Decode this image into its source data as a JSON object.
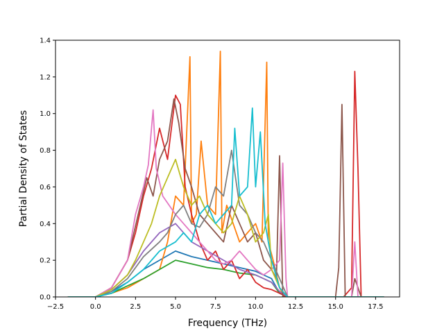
{
  "chart_data": {
    "type": "line",
    "title": "",
    "xlabel": "Frequency (THz)",
    "ylabel": "Partial Density of States",
    "xlim": [
      -2.5,
      19.0
    ],
    "ylim": [
      0.0,
      1.4
    ],
    "xticks": [
      -2.5,
      0.0,
      2.5,
      5.0,
      7.5,
      10.0,
      12.5,
      15.0,
      17.5
    ],
    "xtick_labels": [
      "−2.5",
      "0.0",
      "2.5",
      "5.0",
      "7.5",
      "10.0",
      "12.5",
      "15.0",
      "17.5"
    ],
    "yticks": [
      0.0,
      0.2,
      0.4,
      0.6,
      0.8,
      1.0,
      1.2,
      1.4
    ],
    "ytick_labels": [
      "0.0",
      "0.2",
      "0.4",
      "0.6",
      "0.8",
      "1.0",
      "1.2",
      "1.4"
    ],
    "grid": false,
    "legend": "none",
    "series": [
      {
        "color": "#1f77b4",
        "x": [
          -1.7,
          0,
          1,
          2,
          3,
          4,
          5,
          6,
          7,
          8,
          9,
          10,
          11,
          11.5,
          12,
          15,
          16,
          17,
          18
        ],
        "y": [
          0,
          0,
          0.03,
          0.08,
          0.15,
          0.2,
          0.25,
          0.22,
          0.2,
          0.18,
          0.16,
          0.14,
          0.1,
          0.02,
          0,
          0,
          0,
          0,
          0
        ]
      },
      {
        "color": "#ff7f0e",
        "x": [
          -1.7,
          0,
          1,
          2,
          3,
          4,
          4.5,
          5,
          5.5,
          5.9,
          6,
          6.3,
          6.6,
          7,
          7.5,
          7.8,
          7.9,
          8.2,
          8.6,
          9,
          9.5,
          10,
          10.4,
          10.7,
          10.8,
          11.1,
          11.5,
          11.8,
          12,
          15,
          16,
          17,
          18
        ],
        "y": [
          0,
          0,
          0.02,
          0.05,
          0.1,
          0.15,
          0.3,
          0.55,
          0.5,
          1.31,
          0.4,
          0.45,
          0.85,
          0.5,
          0.45,
          1.34,
          0.35,
          0.5,
          0.4,
          0.3,
          0.35,
          0.4,
          0.3,
          1.28,
          0.3,
          0.2,
          0.05,
          0,
          0,
          0,
          0,
          0,
          0
        ]
      },
      {
        "color": "#2ca02c",
        "x": [
          -1.7,
          0,
          1,
          2,
          3,
          4,
          5,
          6,
          7,
          8,
          9,
          10,
          11,
          11.5,
          12,
          15,
          16,
          17,
          18
        ],
        "y": [
          0,
          0,
          0.02,
          0.06,
          0.1,
          0.15,
          0.2,
          0.18,
          0.16,
          0.15,
          0.13,
          0.12,
          0.08,
          0.02,
          0,
          0,
          0,
          0,
          0
        ]
      },
      {
        "color": "#d62728",
        "x": [
          -1.7,
          0,
          1,
          2,
          2.5,
          3,
          3.5,
          4,
          4.5,
          5,
          5.3,
          5.6,
          6,
          6.5,
          7,
          7.5,
          8,
          8.5,
          9,
          9.5,
          10,
          10.5,
          11,
          11.5,
          12,
          15,
          15.5,
          16,
          16.2,
          16.4,
          16.6,
          17,
          18
        ],
        "y": [
          0,
          0,
          0.05,
          0.2,
          0.35,
          0.55,
          0.7,
          0.92,
          0.75,
          1.1,
          1.05,
          0.6,
          0.45,
          0.3,
          0.2,
          0.25,
          0.15,
          0.2,
          0.1,
          0.15,
          0.08,
          0.05,
          0.04,
          0.02,
          0,
          0,
          0,
          0.05,
          1.23,
          0.7,
          0,
          0,
          0
        ]
      },
      {
        "color": "#9467bd",
        "x": [
          -1.7,
          0,
          1,
          2,
          3,
          4,
          5,
          6,
          7,
          8,
          9,
          10,
          11,
          11.5,
          12,
          15,
          16,
          17,
          18
        ],
        "y": [
          0,
          0,
          0.04,
          0.12,
          0.25,
          0.35,
          0.4,
          0.3,
          0.25,
          0.2,
          0.15,
          0.12,
          0.08,
          0.03,
          0,
          0,
          0,
          0,
          0
        ]
      },
      {
        "color": "#8c564b",
        "x": [
          -1.7,
          0,
          1,
          2,
          2.8,
          3.2,
          3.6,
          4,
          4.5,
          4.9,
          5.2,
          5.6,
          6,
          6.5,
          7,
          7.5,
          8,
          8.5,
          9,
          9.5,
          10,
          10.5,
          11,
          11.3,
          11.5,
          11.7,
          12,
          15,
          15.2,
          15.4,
          15.6,
          16,
          16.2,
          16.6,
          17,
          18
        ],
        "y": [
          0,
          0,
          0.05,
          0.2,
          0.5,
          0.65,
          0.55,
          0.75,
          0.85,
          1.08,
          0.95,
          0.7,
          0.6,
          0.45,
          0.4,
          0.35,
          0.3,
          0.5,
          0.4,
          0.3,
          0.35,
          0.2,
          0.15,
          0.1,
          0.77,
          0,
          0,
          0,
          0.16,
          1.05,
          0,
          0,
          0.1,
          0,
          0,
          0
        ]
      },
      {
        "color": "#e377c2",
        "x": [
          -1.7,
          0,
          1,
          2,
          2.5,
          3,
          3.3,
          3.6,
          3.8,
          4.2,
          4.6,
          5,
          5.5,
          6,
          6.5,
          7,
          7.5,
          8,
          8.5,
          9,
          9.5,
          10,
          10.5,
          11,
          11.5,
          11.7,
          11.9,
          12,
          15,
          16,
          16.2,
          16.4,
          16.6,
          17,
          18
        ],
        "y": [
          0,
          0,
          0.05,
          0.2,
          0.45,
          0.6,
          0.72,
          1.02,
          0.7,
          0.55,
          0.5,
          0.45,
          0.4,
          0.35,
          0.3,
          0.25,
          0.2,
          0.18,
          0.2,
          0.25,
          0.2,
          0.15,
          0.12,
          0.15,
          0.2,
          0.73,
          0.1,
          0,
          0,
          0,
          0.3,
          0,
          0,
          0,
          0
        ]
      },
      {
        "color": "#7f7f7f",
        "x": [
          -1.7,
          0,
          1,
          2,
          3,
          4,
          4.5,
          5,
          5.5,
          6,
          6.5,
          7,
          7.5,
          8,
          8.5,
          9,
          9.5,
          10,
          10.5,
          11,
          11.5,
          12,
          15,
          16,
          17,
          18
        ],
        "y": [
          0,
          0,
          0.03,
          0.1,
          0.22,
          0.3,
          0.35,
          0.45,
          0.5,
          0.4,
          0.38,
          0.45,
          0.6,
          0.55,
          0.8,
          0.5,
          0.45,
          0.35,
          0.3,
          0.2,
          0.1,
          0,
          0,
          0,
          0,
          0
        ]
      },
      {
        "color": "#bcbd22",
        "x": [
          -1.7,
          0,
          1,
          2,
          2.5,
          3,
          3.5,
          4,
          4.5,
          5,
          5.5,
          6,
          6.5,
          7,
          7.5,
          8,
          8.5,
          9,
          9.5,
          10,
          10.5,
          10.8,
          11,
          11.5,
          12,
          15,
          16,
          17,
          18
        ],
        "y": [
          0,
          0,
          0.04,
          0.12,
          0.2,
          0.3,
          0.4,
          0.55,
          0.65,
          0.75,
          0.6,
          0.5,
          0.55,
          0.45,
          0.4,
          0.35,
          0.4,
          0.55,
          0.45,
          0.3,
          0.35,
          0.45,
          0.15,
          0.05,
          0,
          0,
          0,
          0,
          0
        ]
      },
      {
        "color": "#17becf",
        "x": [
          -1.7,
          0,
          1,
          2,
          3,
          4,
          5,
          5.5,
          6,
          6.5,
          7,
          7.5,
          8,
          8.5,
          8.7,
          9,
          9.5,
          9.8,
          10,
          10.3,
          10.6,
          11,
          11.5,
          12,
          15,
          16,
          17,
          18
        ],
        "y": [
          0,
          0,
          0.02,
          0.08,
          0.15,
          0.25,
          0.3,
          0.35,
          0.3,
          0.45,
          0.5,
          0.4,
          0.45,
          0.5,
          0.92,
          0.55,
          0.6,
          1.03,
          0.6,
          0.9,
          0.4,
          0.2,
          0.05,
          0,
          0,
          0,
          0,
          0
        ]
      }
    ]
  }
}
